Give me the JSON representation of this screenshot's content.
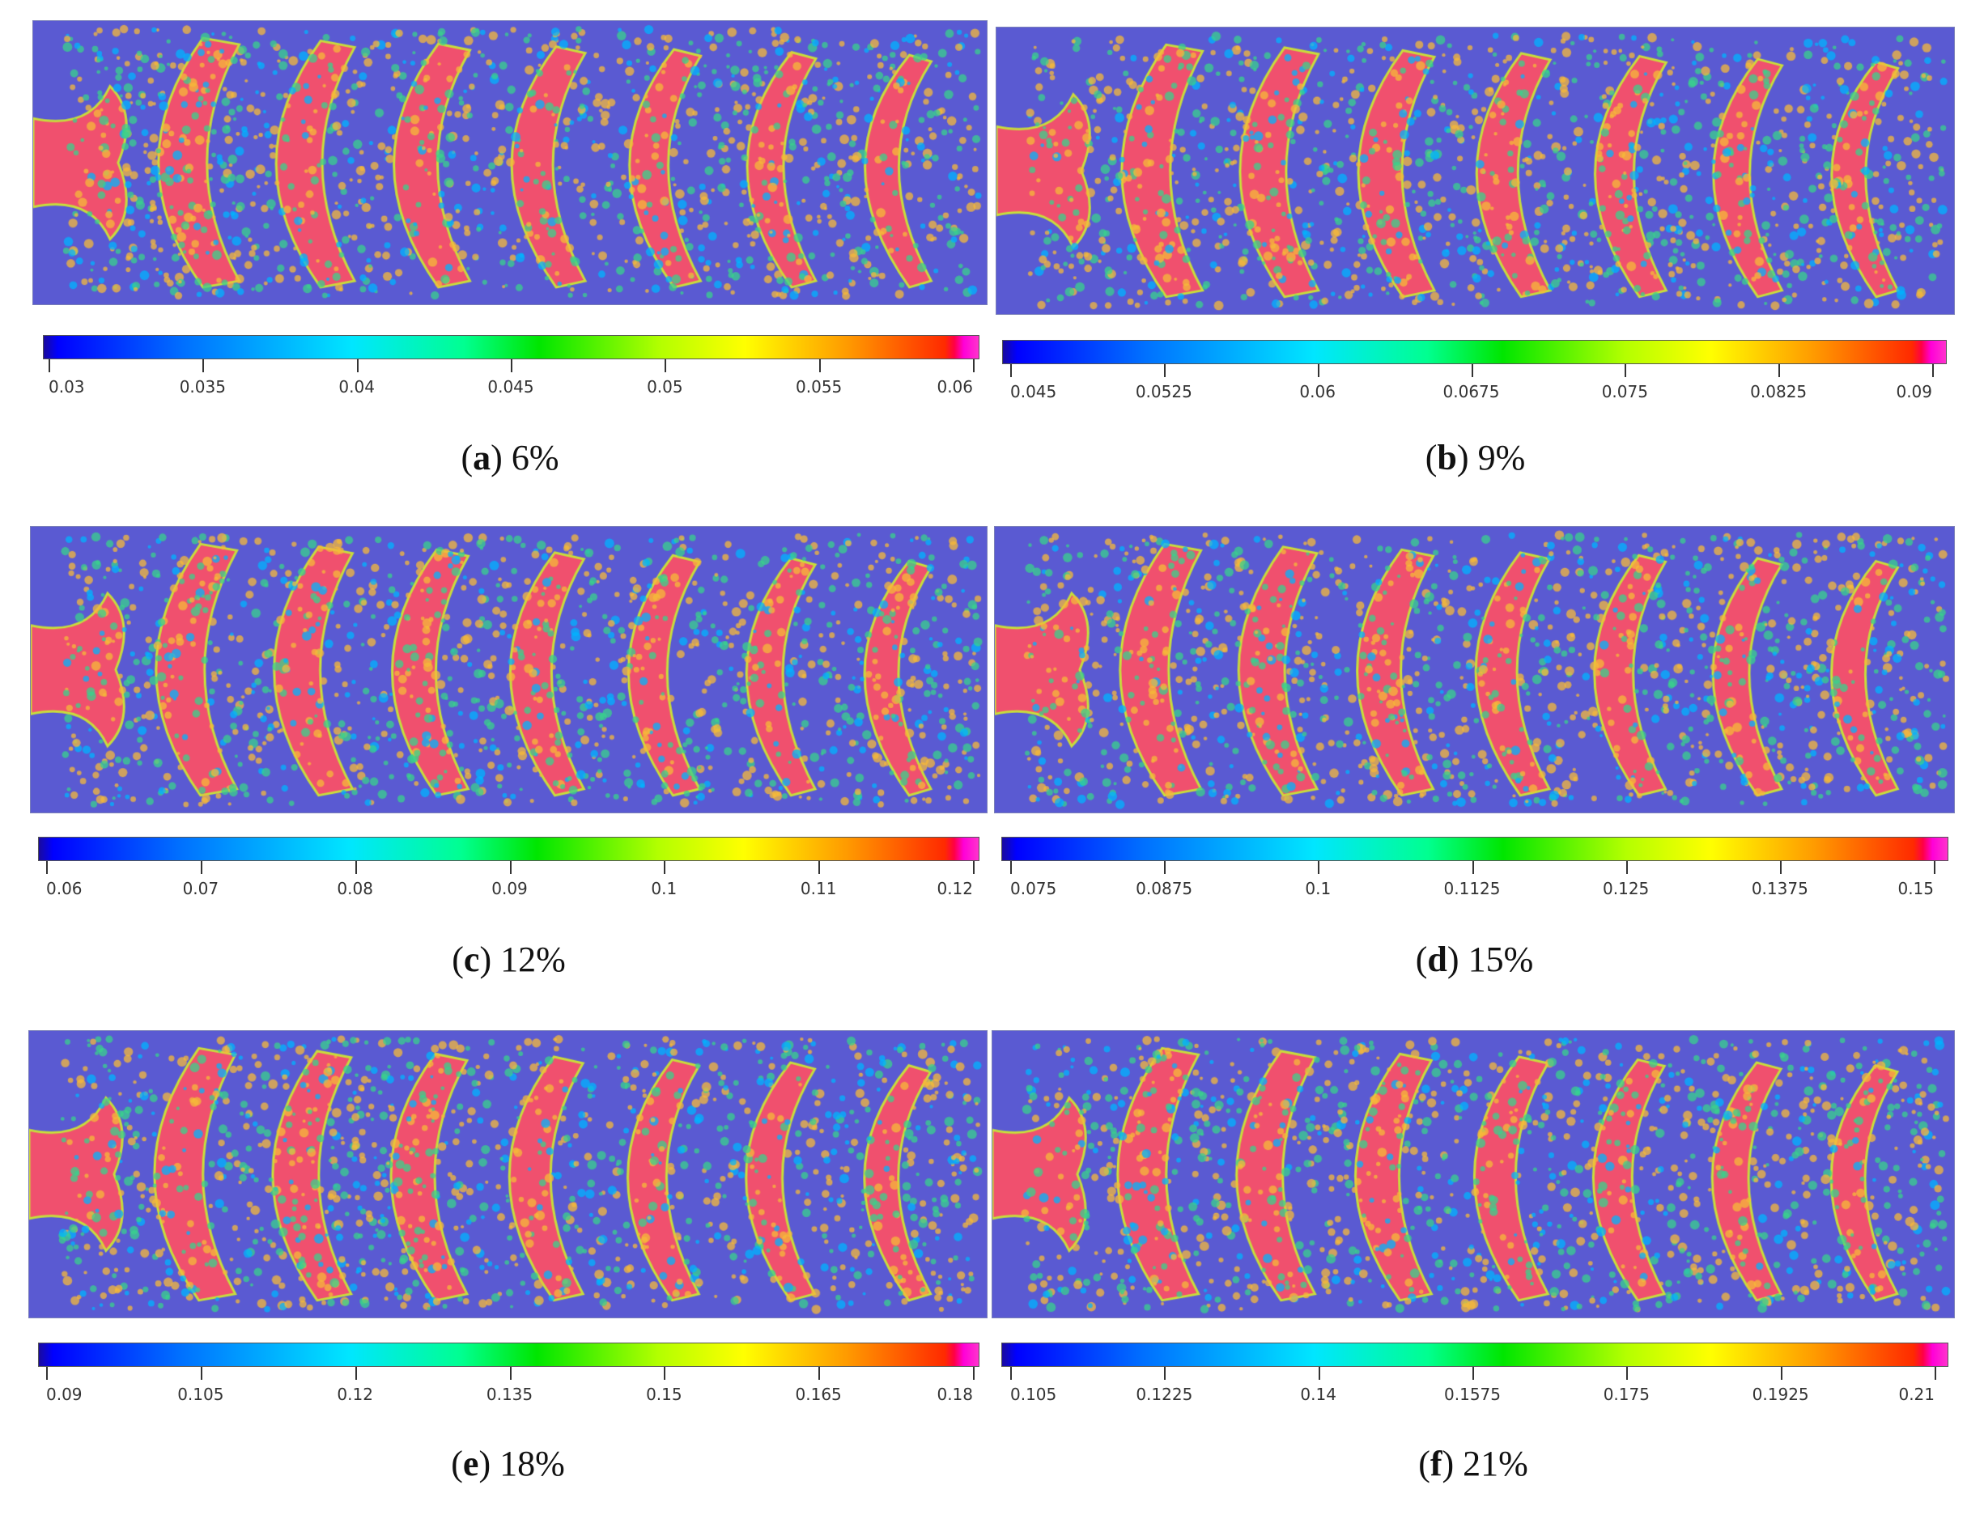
{
  "panels": [
    {
      "letter": "a",
      "label": "6%",
      "ticks": [
        "0.03",
        "0.035",
        "0.04",
        "0.045",
        "0.05",
        "0.055",
        "0.06"
      ]
    },
    {
      "letter": "b",
      "label": "9%",
      "ticks": [
        "0.045",
        "0.0525",
        "0.06",
        "0.0675",
        "0.075",
        "0.0825",
        "0.09"
      ]
    },
    {
      "letter": "c",
      "label": "12%",
      "ticks": [
        "0.06",
        "0.07",
        "0.08",
        "0.09",
        "0.1",
        "0.11",
        "0.12"
      ]
    },
    {
      "letter": "d",
      "label": "15%",
      "ticks": [
        "0.075",
        "0.0875",
        "0.1",
        "0.1125",
        "0.125",
        "0.1375",
        "0.15"
      ]
    },
    {
      "letter": "e",
      "label": "18%",
      "ticks": [
        "0.09",
        "0.105",
        "0.12",
        "0.135",
        "0.15",
        "0.165",
        "0.18"
      ]
    },
    {
      "letter": "f",
      "label": "21%",
      "ticks": [
        "0.105",
        "0.1225",
        "0.14",
        "0.1575",
        "0.175",
        "0.1925",
        "0.21"
      ]
    }
  ],
  "colors": {
    "background": "#5a5ad2",
    "band_core": "#f0506e",
    "band_speckle": "#f5b93a",
    "band_edge": "#3ad28c",
    "outline": "#c8dc3c"
  }
}
